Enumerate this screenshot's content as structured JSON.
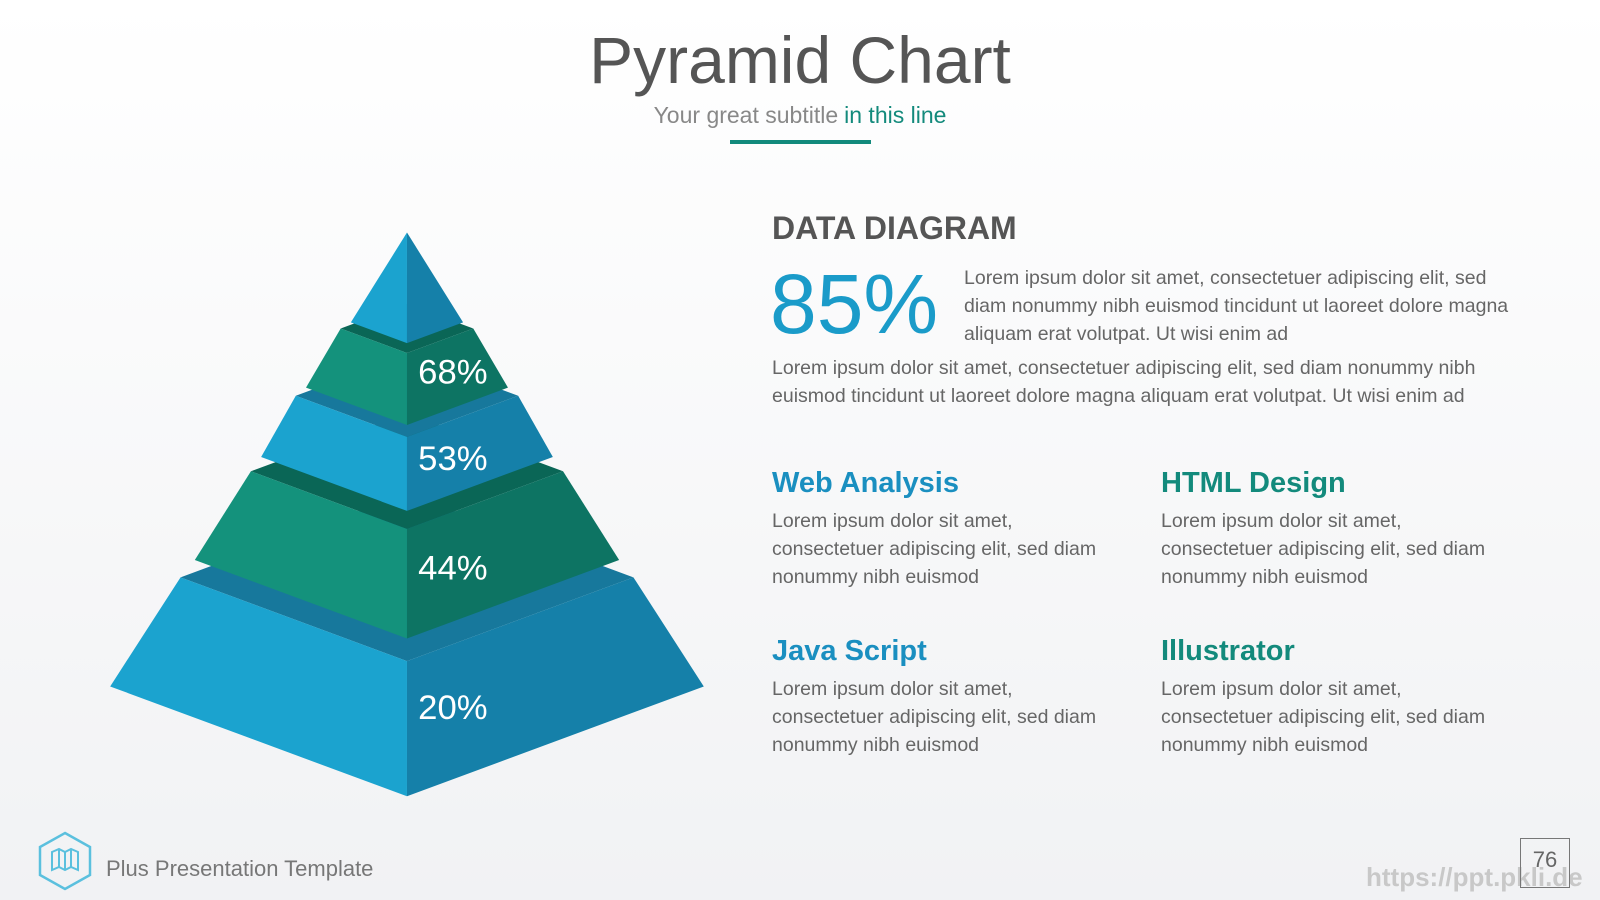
{
  "header": {
    "title": "Pyramid Chart",
    "subtitle": "Your great subtitle",
    "subtitle_highlight": "in this line"
  },
  "pyramid": {
    "labels": [
      "68%",
      "53%",
      "44%",
      "20%"
    ]
  },
  "content": {
    "heading": "DATA DIAGRAM",
    "stat": "85%",
    "stat_text": "Lorem ipsum dolor sit amet, consectetuer adipiscing elit, sed diam nonummy nibh euismod tincidunt ut laoreet dolore magna aliquam erat volutpat. Ut wisi enim ad",
    "paragraph": "Lorem ipsum dolor sit amet, consectetuer adipiscing elit, sed diam nonummy nibh euismod tincidunt ut laoreet dolore magna aliquam erat volutpat. Ut wisi enim ad",
    "items": [
      {
        "title": "Web Analysis",
        "text": "Lorem ipsum dolor sit amet, consectetuer adipiscing elit, sed diam nonummy nibh euismod"
      },
      {
        "title": "HTML Design",
        "text": "Lorem ipsum dolor sit amet, consectetuer adipiscing elit, sed diam nonummy nibh euismod"
      },
      {
        "title": "Java Script",
        "text": "Lorem ipsum dolor sit amet, consectetuer adipiscing elit, sed diam nonummy nibh euismod"
      },
      {
        "title": "Illustrator",
        "text": "Lorem ipsum dolor sit amet, consectetuer adipiscing elit, sed diam nonummy nibh euismod"
      }
    ]
  },
  "footer": {
    "brand": "Plus Presentation Template",
    "page": "76",
    "watermark": "https://ppt.pkli.de"
  }
}
